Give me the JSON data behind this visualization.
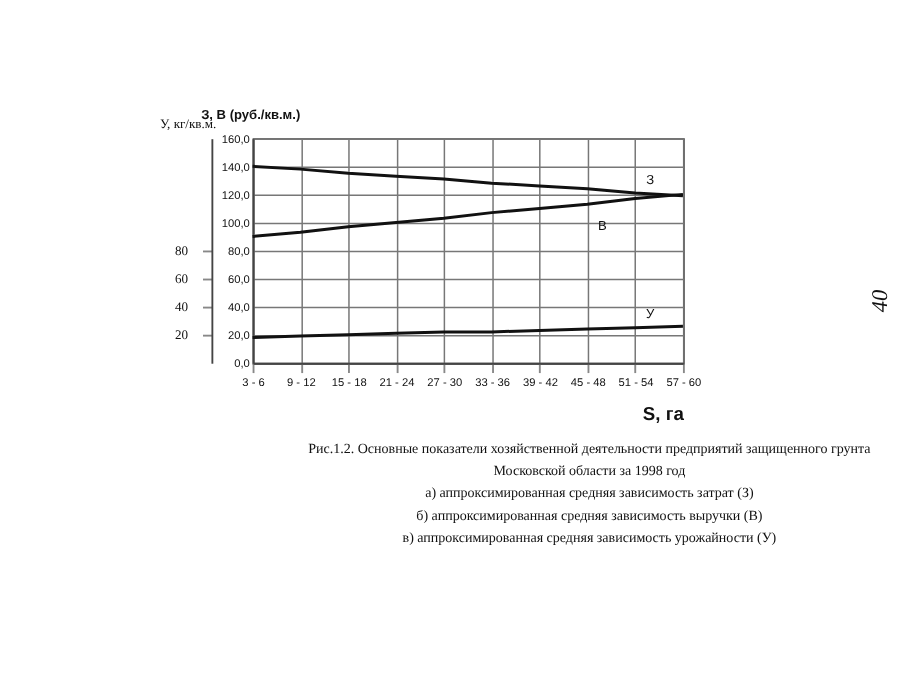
{
  "chart_data": {
    "type": "line",
    "categories": [
      "3 - 6",
      "9 - 12",
      "15 - 18",
      "21 - 24",
      "27 - 30",
      "33 - 36",
      "39 - 42",
      "45 - 48",
      "51 - 54",
      "57 - 60"
    ],
    "series": [
      {
        "name": "З",
        "color": "#111111",
        "values": [
          140,
          138,
          135,
          133,
          131,
          128,
          126,
          124,
          121,
          119
        ]
      },
      {
        "name": "В",
        "color": "#111111",
        "values": [
          90,
          93,
          97,
          100,
          103,
          107,
          110,
          113,
          117,
          120
        ]
      },
      {
        "name": "У",
        "color": "#111111",
        "axis": "y2",
        "values": [
          18,
          19,
          20,
          21,
          22,
          22,
          23,
          24,
          25,
          26
        ]
      }
    ],
    "xlabel": "S, га",
    "ylabel": "З, В (руб./кв.м.)",
    "y2label": "У, кг/кв.м.",
    "ylim": [
      0,
      160
    ],
    "yticks": [
      {
        "value": 0,
        "label": "0,0"
      },
      {
        "value": 20,
        "label": "20,0"
      },
      {
        "value": 40,
        "label": "40,0"
      },
      {
        "value": 60,
        "label": "60,0"
      },
      {
        "value": 80,
        "label": "80,0"
      },
      {
        "value": 100,
        "label": "100,0"
      },
      {
        "value": 120,
        "label": "120,0"
      },
      {
        "value": 140,
        "label": "140,0"
      },
      {
        "value": 160,
        "label": "160,0"
      }
    ],
    "y2lim": [
      0,
      160
    ],
    "y2ticks": [
      20,
      40,
      60,
      80
    ],
    "grid": true,
    "legend": false,
    "marker": "none",
    "line_style": "solid",
    "annotations": [
      "Рис.1.2. Основные показатели хозяйственной деятельности предприятий защищенного грунта",
      "Московской области за 1998 год",
      "а) аппроксимированная средняя зависимость затрат (З)",
      "б) аппроксимированная средняя зависимость выручки (В)",
      "в) аппроксимированная средняя зависимость урожайности (У)",
      "40"
    ]
  }
}
